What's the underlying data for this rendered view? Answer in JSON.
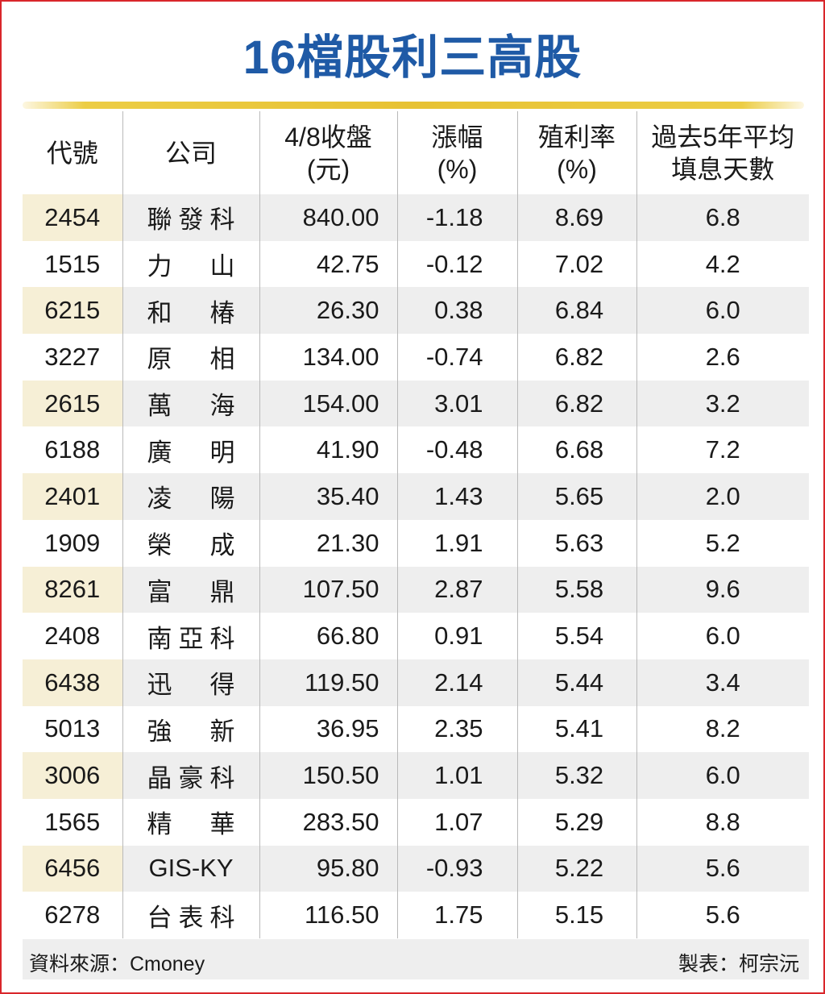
{
  "title": "16檔股利三高股",
  "headers": {
    "code": "代號",
    "company": "公司",
    "close_line1": "4/8收盤",
    "close_line2": "(元)",
    "change_line1": "漲幅",
    "change_line2": "(%)",
    "yield_line1": "殖利率",
    "yield_line2": "(%)",
    "days_line1": "過去5年平均",
    "days_line2": "填息天數"
  },
  "rows": [
    {
      "code": "2454",
      "company": "聯發科",
      "close": "840.00",
      "change": "-1.18",
      "yield": "8.69",
      "days": "6.8"
    },
    {
      "code": "1515",
      "company": "力山",
      "close": "42.75",
      "change": "-0.12",
      "yield": "7.02",
      "days": "4.2"
    },
    {
      "code": "6215",
      "company": "和椿",
      "close": "26.30",
      "change": "0.38",
      "yield": "6.84",
      "days": "6.0"
    },
    {
      "code": "3227",
      "company": "原相",
      "close": "134.00",
      "change": "-0.74",
      "yield": "6.82",
      "days": "2.6"
    },
    {
      "code": "2615",
      "company": "萬海",
      "close": "154.00",
      "change": "3.01",
      "yield": "6.82",
      "days": "3.2"
    },
    {
      "code": "6188",
      "company": "廣明",
      "close": "41.90",
      "change": "-0.48",
      "yield": "6.68",
      "days": "7.2"
    },
    {
      "code": "2401",
      "company": "凌陽",
      "close": "35.40",
      "change": "1.43",
      "yield": "5.65",
      "days": "2.0"
    },
    {
      "code": "1909",
      "company": "榮成",
      "close": "21.30",
      "change": "1.91",
      "yield": "5.63",
      "days": "5.2"
    },
    {
      "code": "8261",
      "company": "富鼎",
      "close": "107.50",
      "change": "2.87",
      "yield": "5.58",
      "days": "9.6"
    },
    {
      "code": "2408",
      "company": "南亞科",
      "close": "66.80",
      "change": "0.91",
      "yield": "5.54",
      "days": "6.0"
    },
    {
      "code": "6438",
      "company": "迅得",
      "close": "119.50",
      "change": "2.14",
      "yield": "5.44",
      "days": "3.4"
    },
    {
      "code": "5013",
      "company": "強新",
      "close": "36.95",
      "change": "2.35",
      "yield": "5.41",
      "days": "8.2"
    },
    {
      "code": "3006",
      "company": "晶豪科",
      "close": "150.50",
      "change": "1.01",
      "yield": "5.32",
      "days": "6.0"
    },
    {
      "code": "1565",
      "company": "精華",
      "close": "283.50",
      "change": "1.07",
      "yield": "5.29",
      "days": "8.8"
    },
    {
      "code": "6456",
      "company": "GIS-KY",
      "close": "95.80",
      "change": "-0.93",
      "yield": "5.22",
      "days": "5.6"
    },
    {
      "code": "6278",
      "company": "台表科",
      "close": "116.50",
      "change": "1.75",
      "yield": "5.15",
      "days": "5.6"
    }
  ],
  "footer": {
    "source": "資料來源：Cmoney",
    "credit": "製表：柯宗沅"
  },
  "colors": {
    "title": "#1f5aa6",
    "border": "#d9262b",
    "rule": "#e7c233",
    "stripe": "#eeeeee",
    "code_stripe": "#f6efd6"
  }
}
